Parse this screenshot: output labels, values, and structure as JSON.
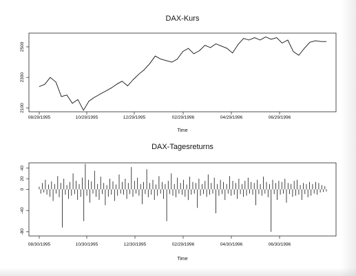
{
  "chart_data": [
    {
      "type": "line",
      "title": "DAX-Kurs",
      "xlabel": "Time",
      "ylabel": "",
      "x_tick_labels": [
        "08/29/1995",
        "10/29/1995",
        "12/29/1995",
        "02/29/1996",
        "04/29/1996",
        "06/29/1996"
      ],
      "y_tick_labels": [
        "2100",
        "2300",
        "2500"
      ],
      "ylim": [
        2075,
        2590
      ],
      "grid": false,
      "series": [
        {
          "x": [
            "1995-08-29",
            "1995-09-05",
            "1995-09-12",
            "1995-09-19",
            "1995-09-26",
            "1995-10-03",
            "1995-10-10",
            "1995-10-17",
            "1995-10-24",
            "1995-10-31",
            "1995-11-07",
            "1995-11-14",
            "1995-11-21",
            "1995-11-28",
            "1995-12-05",
            "1995-12-12",
            "1995-12-19",
            "1995-12-26",
            "1996-01-02",
            "1996-01-09",
            "1996-01-16",
            "1996-01-23",
            "1996-01-30",
            "1996-02-06",
            "1996-02-13",
            "1996-02-20",
            "1996-02-27",
            "1996-03-05",
            "1996-03-12",
            "1996-03-19",
            "1996-03-26",
            "1996-04-02",
            "1996-04-09",
            "1996-04-16",
            "1996-04-23",
            "1996-04-30",
            "1996-05-07",
            "1996-05-14",
            "1996-05-21",
            "1996-05-28",
            "1996-06-04",
            "1996-06-11",
            "1996-06-18",
            "1996-06-25",
            "1996-07-02",
            "1996-07-09",
            "1996-07-16",
            "1996-07-23",
            "1996-07-30",
            "1996-08-06",
            "1996-08-13",
            "1996-08-20",
            "1996-08-27"
          ],
          "values": [
            2240,
            2255,
            2300,
            2270,
            2175,
            2185,
            2130,
            2155,
            2085,
            2145,
            2170,
            2190,
            2210,
            2230,
            2255,
            2275,
            2245,
            2285,
            2320,
            2350,
            2390,
            2440,
            2420,
            2410,
            2400,
            2420,
            2470,
            2490,
            2455,
            2475,
            2510,
            2495,
            2520,
            2505,
            2490,
            2460,
            2515,
            2555,
            2545,
            2560,
            2545,
            2565,
            2550,
            2560,
            2525,
            2545,
            2470,
            2445,
            2490,
            2530,
            2540,
            2535,
            2535
          ]
        }
      ]
    },
    {
      "type": "bar",
      "title": "DAX-Tagesreturns",
      "xlabel": "Time",
      "ylabel": "",
      "x_tick_labels": [
        "08/30/1995",
        "10/30/1995",
        "12/30/1995",
        "02/29/1996",
        "04/30/1996",
        "06/30/1996"
      ],
      "y_tick_labels": [
        "-80",
        "-40",
        "0",
        "20",
        "40"
      ],
      "ylim": [
        -88,
        50
      ],
      "grid": false,
      "series": [
        {
          "values": [
            5,
            -8,
            12,
            -6,
            18,
            -10,
            9,
            -14,
            15,
            -22,
            10,
            -8,
            25,
            -15,
            12,
            -72,
            20,
            -10,
            8,
            -18,
            14,
            -12,
            30,
            -9,
            16,
            -20,
            10,
            -14,
            22,
            -60,
            48,
            -12,
            18,
            -25,
            15,
            -8,
            35,
            -14,
            10,
            -20,
            24,
            -9,
            12,
            -30,
            8,
            -14,
            20,
            -10,
            15,
            -22,
            9,
            -12,
            28,
            -8,
            14,
            -10,
            20,
            -18,
            12,
            -9,
            42,
            -14,
            16,
            -8,
            22,
            -12,
            10,
            -28,
            14,
            -9,
            38,
            -15,
            12,
            -10,
            18,
            -20,
            9,
            -12,
            25,
            -8,
            14,
            -18,
            10,
            -60,
            16,
            -9,
            30,
            -12,
            10,
            -15,
            22,
            -8,
            12,
            -10,
            18,
            -14,
            9,
            -20,
            24,
            -10,
            14,
            -8,
            12,
            -35,
            20,
            -12,
            10,
            -9,
            16,
            -14,
            28,
            -10,
            12,
            -8,
            22,
            -45,
            10,
            -12,
            18,
            -9,
            14,
            -20,
            10,
            -8,
            25,
            -12,
            16,
            -10,
            12,
            -18,
            20,
            -9,
            10,
            -14,
            16,
            -12,
            22,
            -8,
            14,
            -10,
            12,
            -30,
            18,
            -9,
            10,
            -12,
            24,
            -8,
            14,
            -15,
            10,
            -80,
            18,
            -9,
            12,
            -20,
            16,
            -10,
            14,
            -8,
            20,
            -25,
            12,
            -9,
            10,
            -14,
            16,
            -12,
            18,
            -10,
            8,
            -20,
            12,
            -9,
            10,
            -15,
            14,
            -12,
            10,
            -8,
            14,
            -10,
            12,
            -6,
            8,
            -5,
            6,
            -4
          ]
        }
      ]
    }
  ]
}
